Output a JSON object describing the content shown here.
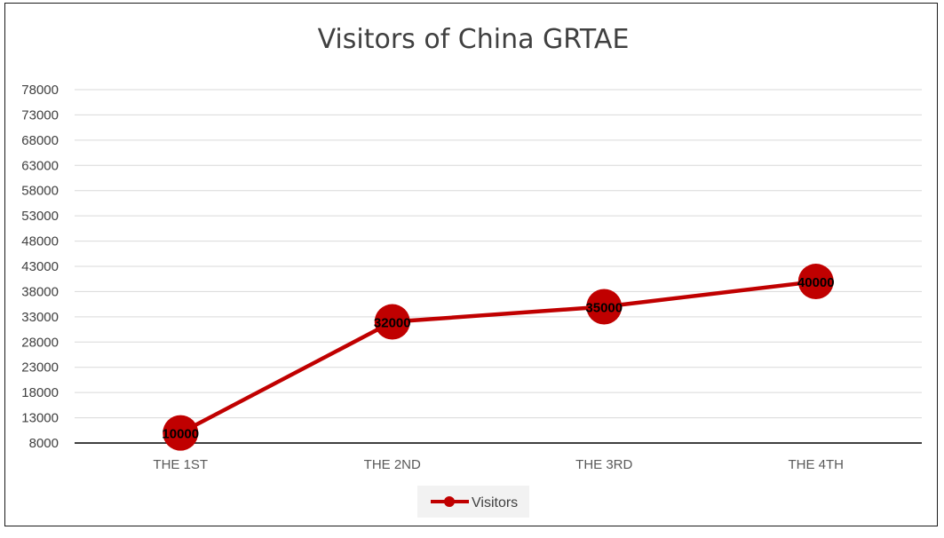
{
  "chart_data": {
    "type": "line",
    "title": "Visitors of China GRTAE",
    "categories": [
      "THE 1ST",
      "THE 2ND",
      "THE 3RD",
      "THE 4TH"
    ],
    "series": [
      {
        "name": "Visitors",
        "values": [
          10000,
          32000,
          35000,
          40000
        ],
        "color": "#c00000"
      }
    ],
    "data_labels": [
      "10000",
      "32000",
      "35000",
      "40000"
    ],
    "yticks": [
      "78000",
      "73000",
      "68000",
      "63000",
      "58000",
      "53000",
      "48000",
      "43000",
      "38000",
      "33000",
      "28000",
      "23000",
      "18000",
      "13000",
      "8000"
    ],
    "ylim": [
      8000,
      78000
    ],
    "grid": true,
    "legend": "bottom",
    "xlabel": "",
    "ylabel": ""
  }
}
